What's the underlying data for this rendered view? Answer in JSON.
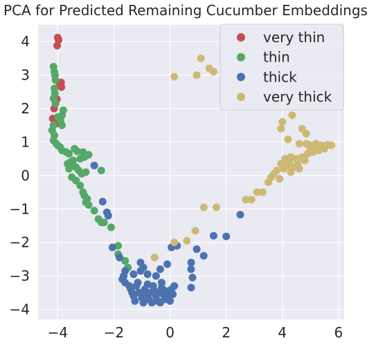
{
  "chart_data": {
    "type": "scatter",
    "title": "PCA for Predicted Remaining Cucumber Embeddings",
    "xlabel": "",
    "ylabel": "",
    "xlim": [
      -4.7,
      6.2
    ],
    "ylim": [
      -4.3,
      4.5
    ],
    "xticks": [
      -4,
      -2,
      0,
      2,
      4,
      6
    ],
    "yticks": [
      4,
      3,
      2,
      1,
      0,
      -1,
      -2,
      -3,
      -4
    ],
    "xtick_labels": [
      "−4",
      "−2",
      "0",
      "2",
      "4",
      "6"
    ],
    "ytick_labels": [
      "4",
      "3",
      "2",
      "1",
      "0",
      "−1",
      "−2",
      "−3",
      "−4"
    ],
    "grid": true,
    "legend_position": "top-right",
    "background": "#eaeaf2",
    "series": [
      {
        "name": "very thin",
        "color": "#c44e52",
        "points": [
          [
            -4.0,
            4.12
          ],
          [
            -3.97,
            4.05
          ],
          [
            -4.02,
            3.88
          ],
          [
            -3.88,
            2.78
          ],
          [
            -3.9,
            2.7
          ],
          [
            -3.87,
            2.64
          ],
          [
            -3.93,
            2.74
          ],
          [
            -4.03,
            2.28
          ],
          [
            -4.08,
            2.22
          ],
          [
            -4.13,
            2.0
          ],
          [
            -4.18,
            1.7
          ],
          [
            -4.1,
            1.65
          ],
          [
            -4.05,
            1.55
          ]
        ]
      },
      {
        "name": "thin",
        "color": "#55a868",
        "points": [
          [
            -4.15,
            3.25
          ],
          [
            -4.12,
            3.1
          ],
          [
            -4.1,
            3.0
          ],
          [
            -4.08,
            2.85
          ],
          [
            -4.12,
            2.6
          ],
          [
            -4.1,
            2.45
          ],
          [
            -4.15,
            2.3
          ],
          [
            -4.08,
            2.15
          ],
          [
            -3.8,
            1.95
          ],
          [
            -3.85,
            1.8
          ],
          [
            -4.0,
            1.75
          ],
          [
            -3.9,
            1.65
          ],
          [
            -3.85,
            1.5
          ],
          [
            -4.15,
            1.5
          ],
          [
            -4.2,
            1.35
          ],
          [
            -4.12,
            1.2
          ],
          [
            -4.15,
            1.05
          ],
          [
            -4.05,
            0.95
          ],
          [
            -4.0,
            0.9
          ],
          [
            -3.92,
            0.85
          ],
          [
            -3.85,
            0.75
          ],
          [
            -3.7,
            0.7
          ],
          [
            -3.6,
            0.65
          ],
          [
            -3.4,
            0.8
          ],
          [
            -3.3,
            0.72
          ],
          [
            -3.1,
            0.7
          ],
          [
            -3.0,
            0.6
          ],
          [
            -3.05,
            0.55
          ],
          [
            -2.9,
            0.62
          ],
          [
            -3.2,
            0.5
          ],
          [
            -3.45,
            0.45
          ],
          [
            -3.55,
            0.4
          ],
          [
            -3.65,
            0.35
          ],
          [
            -3.5,
            0.3
          ],
          [
            -3.35,
            0.25
          ],
          [
            -3.6,
            0.2
          ],
          [
            -3.25,
            0.15
          ],
          [
            -3.0,
            0.1
          ],
          [
            -3.15,
            0.05
          ],
          [
            -2.45,
            0.15
          ],
          [
            -3.5,
            -0.05
          ],
          [
            -3.35,
            -0.15
          ],
          [
            -3.2,
            -0.3
          ],
          [
            -3.1,
            -0.5
          ],
          [
            -3.05,
            -0.6
          ],
          [
            -2.95,
            -0.7
          ],
          [
            -3.0,
            -0.8
          ],
          [
            -2.9,
            -0.88
          ],
          [
            -2.7,
            -1.05
          ],
          [
            -2.55,
            -1.3
          ],
          [
            -2.45,
            -1.4
          ],
          [
            -2.35,
            -1.4
          ],
          [
            -2.1,
            -1.55
          ],
          [
            -1.85,
            -2.1
          ],
          [
            -1.85,
            -2.35
          ],
          [
            -1.6,
            -2.55
          ],
          [
            -1.5,
            -2.75
          ]
        ]
      },
      {
        "name": "thick",
        "color": "#4c72b0",
        "points": [
          [
            -2.7,
            0.3
          ],
          [
            -2.4,
            -0.78
          ],
          [
            -2.25,
            -1.1
          ],
          [
            -2.2,
            -1.2
          ],
          [
            -2.05,
            -2.15
          ],
          [
            -1.8,
            -2.45
          ],
          [
            -1.05,
            -2.6
          ],
          [
            -0.95,
            -2.75
          ],
          [
            -1.05,
            -2.85
          ],
          [
            -0.35,
            -2.8
          ],
          [
            -0.1,
            -2.65
          ],
          [
            0.05,
            -2.15
          ],
          [
            0.75,
            -2.6
          ],
          [
            0.75,
            -2.8
          ],
          [
            0.25,
            -2.1
          ],
          [
            0.95,
            -2.2
          ],
          [
            1.2,
            -2.4
          ],
          [
            1.55,
            -1.8
          ],
          [
            2.0,
            -1.82
          ],
          [
            2.5,
            -1.17
          ],
          [
            -1.6,
            -2.85
          ],
          [
            -1.65,
            -3.0
          ],
          [
            -1.7,
            -3.1
          ],
          [
            -1.6,
            -3.2
          ],
          [
            -1.45,
            -3.3
          ],
          [
            -1.4,
            -3.4
          ],
          [
            -1.35,
            -3.5
          ],
          [
            -1.3,
            -3.6
          ],
          [
            -1.2,
            -3.3
          ],
          [
            -1.1,
            -3.5
          ],
          [
            -1.0,
            -3.65
          ],
          [
            -0.9,
            -3.4
          ],
          [
            -0.85,
            -3.55
          ],
          [
            -0.75,
            -3.7
          ],
          [
            -0.7,
            -3.5
          ],
          [
            -0.6,
            -3.3
          ],
          [
            -0.55,
            -3.45
          ],
          [
            -0.5,
            -3.6
          ],
          [
            -0.45,
            -3.75
          ],
          [
            -0.4,
            -3.5
          ],
          [
            -0.3,
            -3.35
          ],
          [
            -0.25,
            -3.55
          ],
          [
            -0.2,
            -3.7
          ],
          [
            -0.15,
            -3.45
          ],
          [
            -0.05,
            -3.6
          ],
          [
            0.0,
            -3.75
          ],
          [
            0.05,
            -3.4
          ],
          [
            0.1,
            -3.55
          ],
          [
            0.15,
            -3.3
          ],
          [
            -1.25,
            -3.75
          ],
          [
            -0.95,
            -3.8
          ],
          [
            -0.65,
            -3.8
          ],
          [
            -0.35,
            -3.8
          ],
          [
            -1.15,
            -3.2
          ],
          [
            -0.8,
            -3.25
          ],
          [
            -0.3,
            -3.2
          ],
          [
            0.75,
            -3.35
          ],
          [
            0.8,
            -3.05
          ],
          [
            -0.8,
            -2.95
          ],
          [
            -0.5,
            -3.0
          ],
          [
            -1.3,
            -2.95
          ]
        ]
      },
      {
        "name": "very thick",
        "color": "#ccb974",
        "points": [
          [
            1.1,
            3.5
          ],
          [
            0.95,
            3.0
          ],
          [
            0.15,
            2.95
          ],
          [
            1.4,
            3.2
          ],
          [
            1.55,
            3.1
          ],
          [
            4.35,
            1.8
          ],
          [
            4.0,
            1.6
          ],
          [
            3.95,
            1.4
          ],
          [
            4.7,
            1.4
          ],
          [
            4.85,
            1.25
          ],
          [
            4.2,
            1.08
          ],
          [
            4.6,
            0.95
          ],
          [
            4.85,
            0.95
          ],
          [
            5.0,
            0.9
          ],
          [
            5.2,
            0.95
          ],
          [
            5.4,
            0.9
          ],
          [
            5.6,
            0.92
          ],
          [
            5.75,
            0.9
          ],
          [
            5.5,
            0.8
          ],
          [
            5.3,
            0.75
          ],
          [
            5.1,
            0.7
          ],
          [
            4.9,
            0.65
          ],
          [
            4.7,
            0.55
          ],
          [
            4.5,
            0.5
          ],
          [
            4.3,
            0.55
          ],
          [
            4.1,
            0.5
          ],
          [
            3.95,
            0.35
          ],
          [
            4.2,
            0.3
          ],
          [
            4.4,
            0.25
          ],
          [
            4.6,
            0.2
          ],
          [
            4.3,
            0.1
          ],
          [
            3.8,
            0.15
          ],
          [
            3.7,
            0.05
          ],
          [
            3.6,
            -0.05
          ],
          [
            3.9,
            -0.1
          ],
          [
            3.5,
            -0.2
          ],
          [
            3.3,
            -0.5
          ],
          [
            3.1,
            -0.5
          ],
          [
            2.9,
            -0.72
          ],
          [
            2.7,
            -0.72
          ],
          [
            1.65,
            -0.95
          ],
          [
            1.2,
            -0.95
          ],
          [
            0.9,
            -1.65
          ],
          [
            0.6,
            -1.95
          ],
          [
            0.15,
            -2.0
          ],
          [
            -0.55,
            -2.45
          ],
          [
            5.0,
            0.8
          ],
          [
            4.8,
            0.45
          ],
          [
            5.25,
            0.85
          ],
          [
            4.55,
            0.35
          ],
          [
            4.25,
            0.4
          ],
          [
            4.05,
            0.2
          ]
        ]
      }
    ]
  }
}
